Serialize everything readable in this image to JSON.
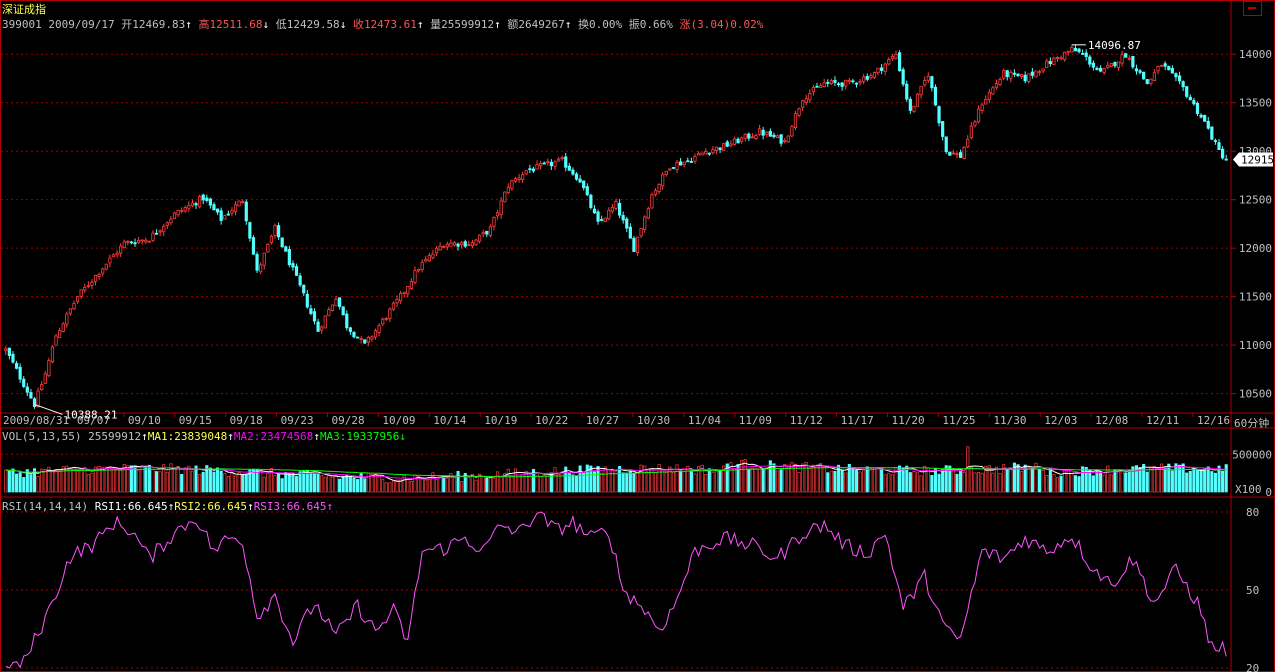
{
  "app": {
    "title": "深证成指"
  },
  "header": {
    "code": "399001",
    "date": "2009/09/17",
    "open_label": "开",
    "open": "12469.83",
    "high_label": "高",
    "high": "12511.68",
    "low_label": "低",
    "low": "12429.58",
    "close_label": "收",
    "close": "12473.61",
    "vol_label": "量",
    "vol": "25599912",
    "amt_label": "额",
    "amt": "2649267",
    "turnover_label": "换",
    "turnover": "0.00%",
    "amp_label": "振",
    "amp": "0.66%",
    "chg_label": "涨",
    "chg": "(3.04)0.02%"
  },
  "vol_header": {
    "title": "VOL(5,13,55)",
    "value": "25599912",
    "ma1": "MA1:23839048",
    "ma2": "MA2:23474568",
    "ma3": "MA3:19337956"
  },
  "rsi_header": {
    "title": "RSI(14,14,14)",
    "rsi1": "RSI1:66.645",
    "rsi2": "RSI2:66.645",
    "rsi3": "RSI3:66.645"
  },
  "period_label": "60分钟",
  "vol_unit": "X100",
  "annotations": {
    "max_label": "14096.87",
    "min_label": "10388.21",
    "last_price": "12915"
  },
  "colors": {
    "up": "#ff3c3c",
    "down": "#54ffff",
    "grid": "#a00000",
    "frame": "#b00000",
    "text": "#c0c0c0",
    "title": "#ffff54",
    "ma1": "#ffffff",
    "ma2": "#ff00ff",
    "ma3": "#00ff00",
    "rsi": "#ff55ff"
  },
  "chart_data": [
    {
      "type": "candlestick",
      "title": "",
      "x_ticks": [
        "2009/08/31",
        "09/07",
        "09/10",
        "09/15",
        "09/18",
        "09/23",
        "09/28",
        "10/09",
        "10/14",
        "10/19",
        "10/22",
        "10/27",
        "10/30",
        "11/04",
        "11/09",
        "11/12",
        "11/17",
        "11/20",
        "11/25",
        "11/30",
        "12/03",
        "12/08",
        "12/11",
        "12/16"
      ],
      "y_ticks": [
        10500,
        11000,
        11500,
        12000,
        12500,
        13000,
        13500,
        14000
      ],
      "ylim": [
        10300,
        14250
      ],
      "max": 14096.87,
      "min": 10388.21,
      "last": 12915,
      "path_keypoints": [
        [
          0,
          10950
        ],
        [
          5,
          10600
        ],
        [
          8,
          10390
        ],
        [
          11,
          10700
        ],
        [
          14,
          11100
        ],
        [
          20,
          11500
        ],
        [
          27,
          11800
        ],
        [
          33,
          12050
        ],
        [
          40,
          12100
        ],
        [
          47,
          12350
        ],
        [
          55,
          12520
        ],
        [
          60,
          12300
        ],
        [
          66,
          12500
        ],
        [
          70,
          11750
        ],
        [
          75,
          12200
        ],
        [
          82,
          11600
        ],
        [
          87,
          11150
        ],
        [
          92,
          11500
        ],
        [
          95,
          11200
        ],
        [
          100,
          11000
        ],
        [
          103,
          11150
        ],
        [
          110,
          11500
        ],
        [
          115,
          11800
        ],
        [
          122,
          12050
        ],
        [
          130,
          12050
        ],
        [
          135,
          12200
        ],
        [
          140,
          12650
        ],
        [
          145,
          12800
        ],
        [
          150,
          12850
        ],
        [
          155,
          12900
        ],
        [
          160,
          12700
        ],
        [
          165,
          12250
        ],
        [
          170,
          12450
        ],
        [
          175,
          12000
        ],
        [
          180,
          12550
        ],
        [
          185,
          12850
        ],
        [
          190,
          12900
        ],
        [
          195,
          13000
        ],
        [
          200,
          13050
        ],
        [
          210,
          13200
        ],
        [
          217,
          13100
        ],
        [
          222,
          13550
        ],
        [
          228,
          13700
        ],
        [
          235,
          13700
        ],
        [
          242,
          13800
        ],
        [
          248,
          14000
        ],
        [
          252,
          13400
        ],
        [
          257,
          13800
        ],
        [
          262,
          13000
        ],
        [
          266,
          12950
        ],
        [
          272,
          13500
        ],
        [
          278,
          13800
        ],
        [
          284,
          13750
        ],
        [
          290,
          13900
        ],
        [
          297,
          14050
        ],
        [
          300,
          14000
        ],
        [
          305,
          13800
        ],
        [
          312,
          14000
        ],
        [
          318,
          13700
        ],
        [
          322,
          13900
        ],
        [
          328,
          13650
        ],
        [
          334,
          13300
        ],
        [
          338,
          13000
        ],
        [
          340,
          12915
        ]
      ],
      "candle_count": 341
    },
    {
      "type": "bar",
      "title": "VOL(5,13,55)",
      "y_ticks": [
        0,
        500000
      ],
      "ylim": [
        0,
        650000
      ],
      "unit": "X100",
      "series": [
        {
          "name": "MA1",
          "values_note": "5-period moving average of volume"
        },
        {
          "name": "MA2",
          "values_note": "13-period moving average of volume"
        },
        {
          "name": "MA3",
          "values_note": "55-period moving average of volume"
        }
      ],
      "value_range": [
        150000,
        600000
      ]
    },
    {
      "type": "line",
      "title": "RSI(14,14,14)",
      "y_ticks": [
        20,
        50,
        80
      ],
      "ylim": [
        20,
        80
      ],
      "keypoints": [
        [
          0,
          20
        ],
        [
          5,
          22
        ],
        [
          12,
          42
        ],
        [
          18,
          63
        ],
        [
          25,
          68
        ],
        [
          30,
          76
        ],
        [
          35,
          73
        ],
        [
          40,
          62
        ],
        [
          47,
          72
        ],
        [
          53,
          78
        ],
        [
          58,
          65
        ],
        [
          62,
          70
        ],
        [
          66,
          69
        ],
        [
          70,
          40
        ],
        [
          75,
          48
        ],
        [
          80,
          30
        ],
        [
          86,
          45
        ],
        [
          92,
          32
        ],
        [
          98,
          44
        ],
        [
          103,
          34
        ],
        [
          108,
          42
        ],
        [
          112,
          30
        ],
        [
          116,
          65
        ],
        [
          122,
          66
        ],
        [
          128,
          70
        ],
        [
          133,
          65
        ],
        [
          138,
          75
        ],
        [
          143,
          72
        ],
        [
          148,
          80
        ],
        [
          153,
          73
        ],
        [
          158,
          76
        ],
        [
          163,
          70
        ],
        [
          168,
          73
        ],
        [
          172,
          50
        ],
        [
          177,
          44
        ],
        [
          182,
          35
        ],
        [
          186,
          43
        ],
        [
          192,
          65
        ],
        [
          200,
          70
        ],
        [
          208,
          67
        ],
        [
          215,
          62
        ],
        [
          222,
          72
        ],
        [
          228,
          75
        ],
        [
          234,
          67
        ],
        [
          240,
          64
        ],
        [
          245,
          72
        ],
        [
          250,
          43
        ],
        [
          256,
          55
        ],
        [
          262,
          34
        ],
        [
          266,
          31
        ],
        [
          272,
          65
        ],
        [
          278,
          62
        ],
        [
          284,
          70
        ],
        [
          290,
          65
        ],
        [
          297,
          71
        ],
        [
          302,
          60
        ],
        [
          308,
          52
        ],
        [
          314,
          62
        ],
        [
          320,
          45
        ],
        [
          326,
          58
        ],
        [
          332,
          45
        ],
        [
          336,
          28
        ],
        [
          340,
          27
        ]
      ]
    }
  ]
}
